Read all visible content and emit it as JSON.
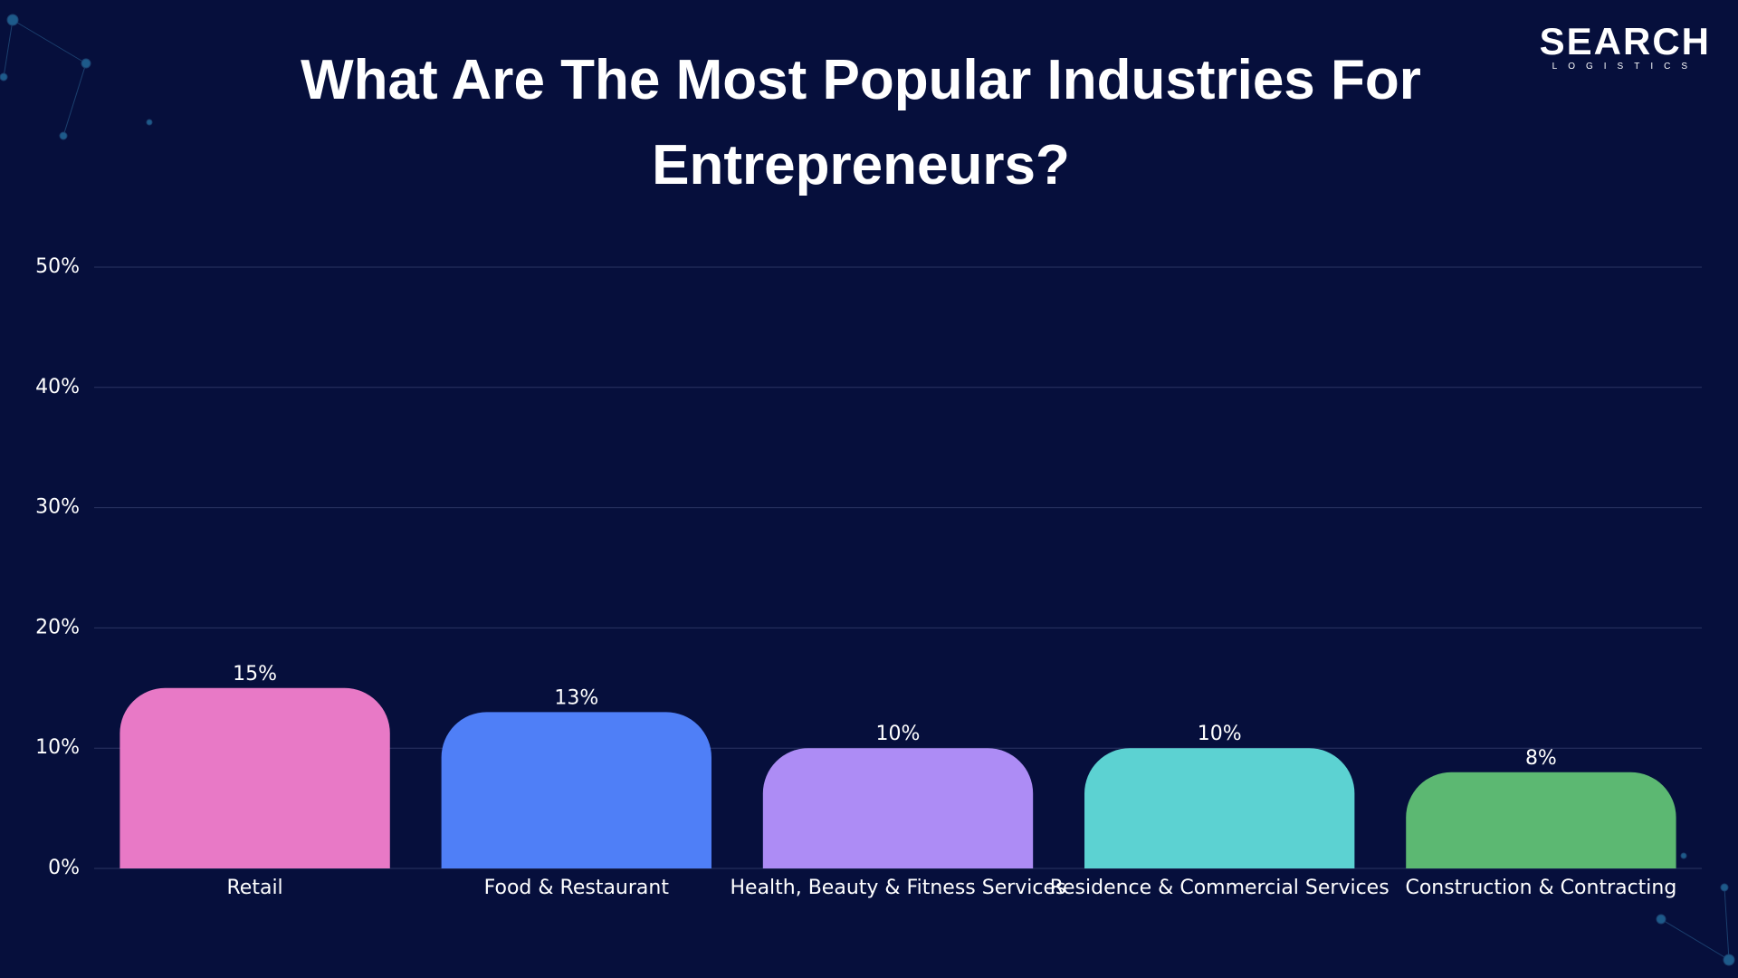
{
  "brand": {
    "name": "SEARCH",
    "tagline": "LOGISTICS"
  },
  "chart_data": {
    "type": "bar",
    "title": "What Are The Most Popular Industries For Entrepreneurs?",
    "categories": [
      "Retail",
      "Food & Restaurant",
      "Health, Beauty & Fitness Services",
      "Residence & Commercial Services",
      "Construction & Contracting"
    ],
    "values": [
      15,
      13,
      10,
      10,
      8
    ],
    "value_labels": [
      "15%",
      "13%",
      "10%",
      "10%",
      "8%"
    ],
    "colors": [
      "#e879c6",
      "#4f7ff7",
      "#ad8cf5",
      "#5cd2d2",
      "#5cb872"
    ],
    "ylim": [
      0,
      50
    ],
    "yticks": [
      {
        "value": 0,
        "label": "0%"
      },
      {
        "value": 10,
        "label": "10%"
      },
      {
        "value": 20,
        "label": "20%"
      },
      {
        "value": 30,
        "label": "30%"
      },
      {
        "value": 40,
        "label": "40%"
      },
      {
        "value": 50,
        "label": "50%"
      }
    ],
    "grid": true
  }
}
